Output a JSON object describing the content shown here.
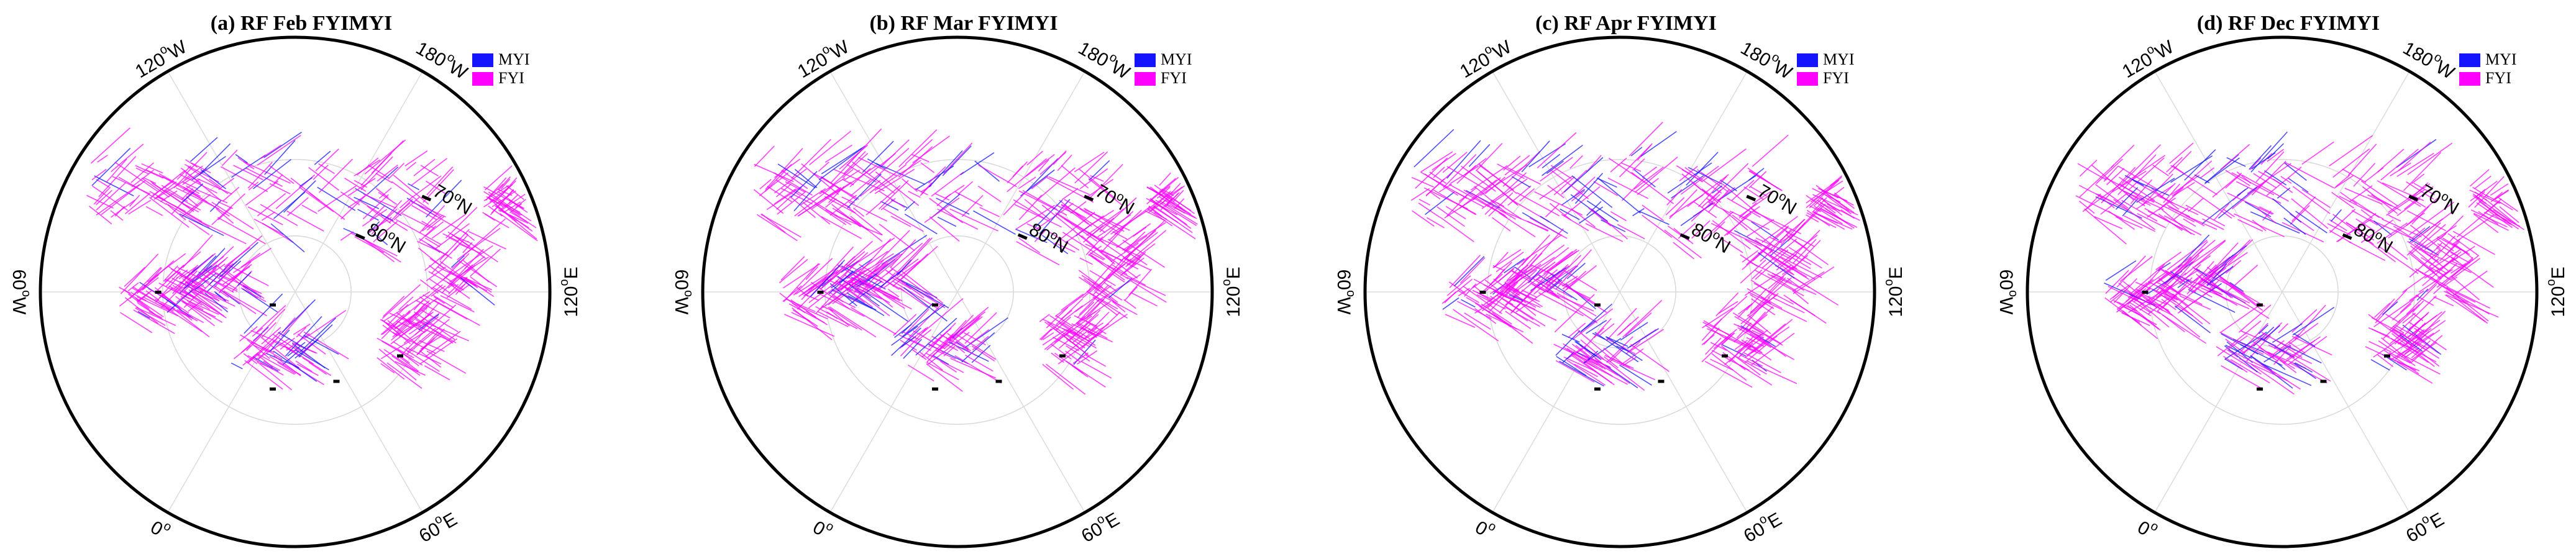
{
  "chart_data": [
    {
      "type": "polar-map",
      "title": "(a) RF Feb FYIMYI",
      "legend": [
        {
          "name": "MYI",
          "color": "#1414ff"
        },
        {
          "name": "FYI",
          "color": "#ff00ff"
        }
      ],
      "longitude_labels": [
        "120°W",
        "180°W",
        "120°E",
        "60°E",
        "0°",
        "60°W"
      ],
      "latitude_labels": [
        "70°N",
        "80°N"
      ],
      "dominant_class": "FYI"
    },
    {
      "type": "polar-map",
      "title": "(b) RF Mar FYIMYI",
      "legend": [
        {
          "name": "MYI",
          "color": "#1414ff"
        },
        {
          "name": "FYI",
          "color": "#ff00ff"
        }
      ],
      "longitude_labels": [
        "120°W",
        "180°W",
        "120°E",
        "60°E",
        "0°",
        "60°W"
      ],
      "latitude_labels": [
        "70°N",
        "80°N"
      ],
      "dominant_class": "FYI"
    },
    {
      "type": "polar-map",
      "title": "(c) RF Apr FYIMYI",
      "legend": [
        {
          "name": "MYI",
          "color": "#1414ff"
        },
        {
          "name": "FYI",
          "color": "#ff00ff"
        }
      ],
      "longitude_labels": [
        "120°W",
        "180°W",
        "120°E",
        "60°E",
        "0°",
        "60°W"
      ],
      "latitude_labels": [
        "70°N",
        "80°N"
      ],
      "dominant_class": "FYI"
    },
    {
      "type": "polar-map",
      "title": "(d) RF Dec FYIMYI",
      "legend": [
        {
          "name": "MYI",
          "color": "#1414ff"
        },
        {
          "name": "FYI",
          "color": "#ff00ff"
        }
      ],
      "longitude_labels": [
        "120°W",
        "180°W",
        "120°E",
        "60°E",
        "0°",
        "60°W"
      ],
      "latitude_labels": [
        "70°N",
        "80°N"
      ],
      "dominant_class": "FYI"
    }
  ]
}
